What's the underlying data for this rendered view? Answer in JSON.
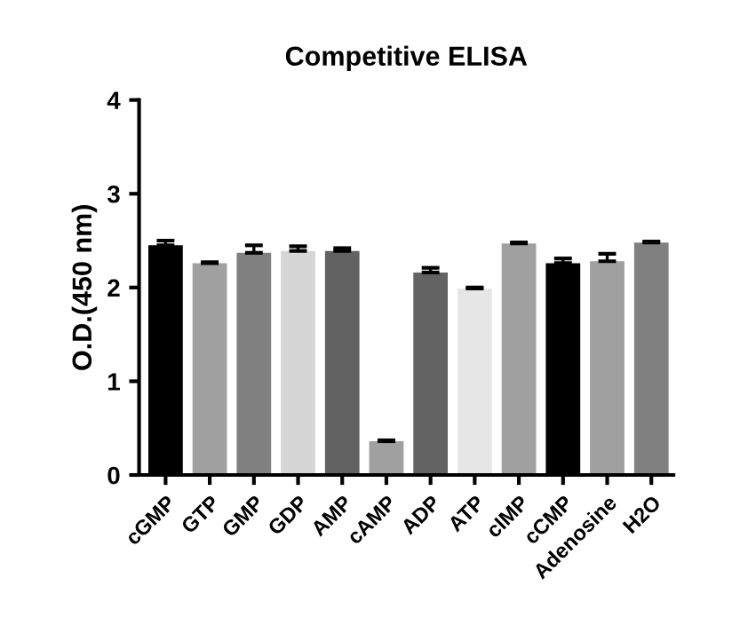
{
  "chart_data": {
    "type": "bar",
    "title": "Competitive ELISA",
    "ylabel": "O.D.(450 nm)",
    "categories": [
      "cGMP",
      "GTP",
      "GMP",
      "GDP",
      "AMP",
      "cAMP",
      "ADP",
      "ATP",
      "cIMP",
      "cCMP",
      "Adenosine",
      "H2O"
    ],
    "values": [
      2.45,
      2.26,
      2.37,
      2.39,
      2.39,
      0.36,
      2.16,
      1.99,
      2.47,
      2.26,
      2.28,
      2.48
    ],
    "errors": [
      [
        2.45,
        2.5
      ],
      [
        2.26,
        2.27
      ],
      [
        2.37,
        2.45
      ],
      [
        2.39,
        2.44
      ],
      [
        2.39,
        2.42
      ],
      [
        0.36,
        0.37
      ],
      [
        2.16,
        2.21
      ],
      [
        1.99,
        2.0
      ],
      [
        2.47,
        2.48
      ],
      [
        2.26,
        2.31
      ],
      [
        2.28,
        2.36
      ],
      [
        2.48,
        2.49
      ]
    ],
    "colors": [
      "#000000",
      "#a0a0a0",
      "#808080",
      "#d6d6d6",
      "#626262",
      "#a0a0a0",
      "#636363",
      "#e6e6e6",
      "#a0a0a0",
      "#000000",
      "#a0a0a0",
      "#808080"
    ],
    "ylim": [
      0,
      4
    ],
    "yticks": [
      0,
      1,
      2,
      3,
      4
    ],
    "grid": false,
    "legend": false
  }
}
